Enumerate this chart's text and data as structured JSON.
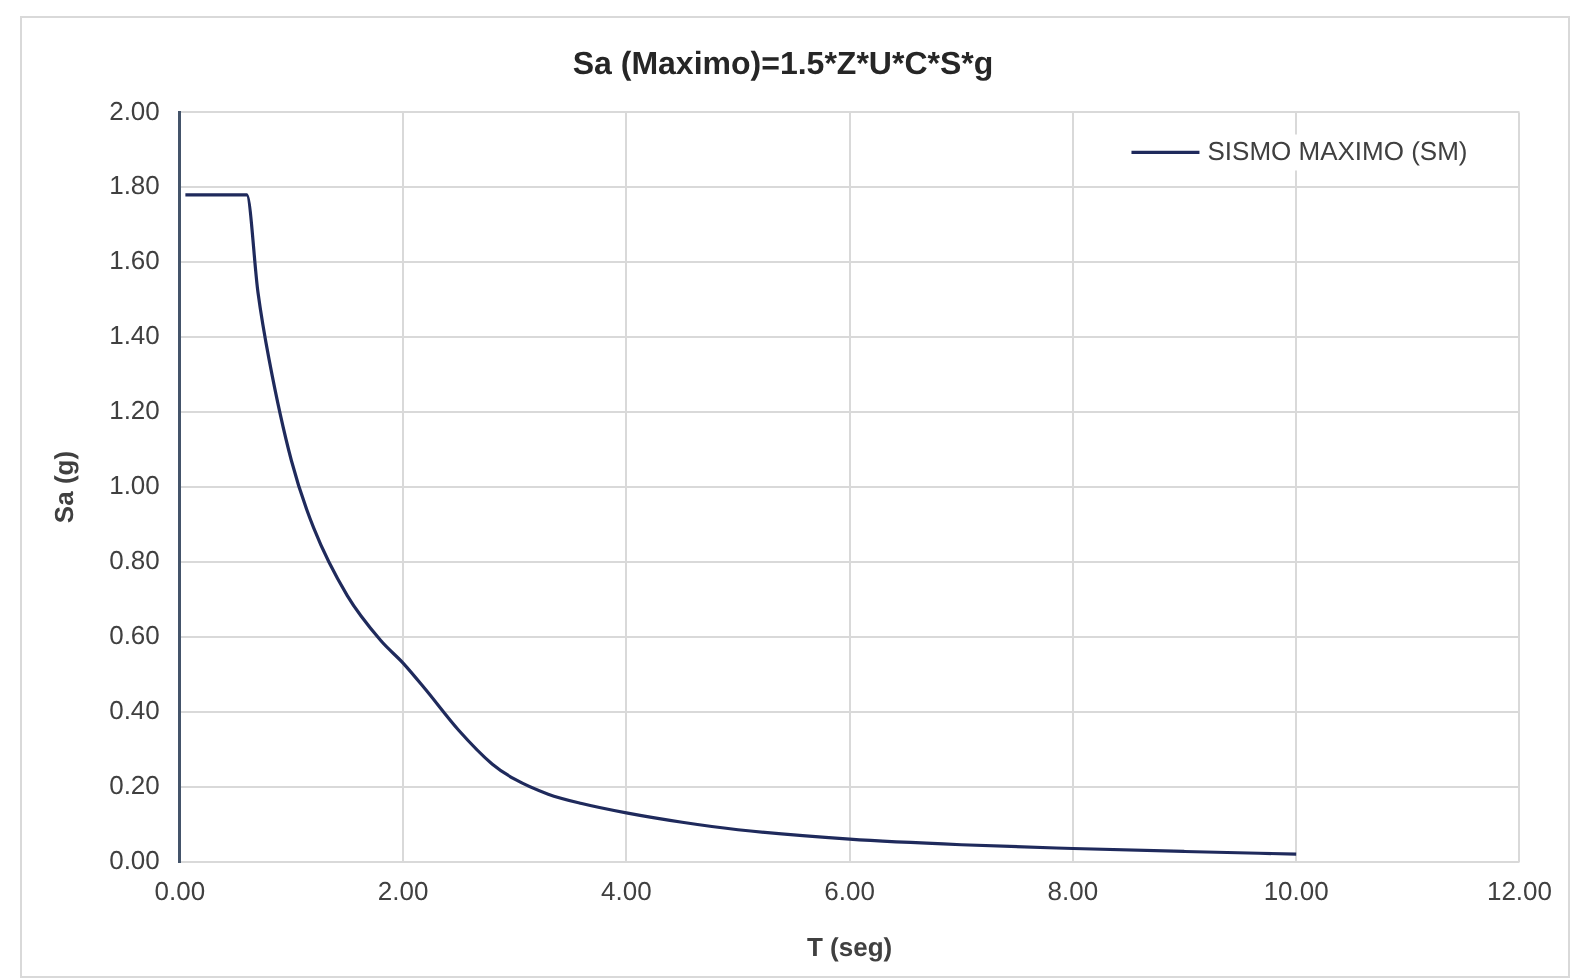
{
  "chart_data": {
    "type": "line",
    "title": "Sa (Maximo)=1.5*Z*U*C*S*g",
    "xlabel": "T (seg)",
    "ylabel": "Sa (g)",
    "x": [
      0.05,
      0.6,
      0.7,
      0.8,
      1.0,
      1.2,
      1.5,
      1.8,
      2.0,
      2.2,
      2.5,
      2.8,
      3.0,
      3.3,
      3.6,
      4.0,
      4.5,
      5.0,
      6.0,
      7.0,
      8.0,
      9.0,
      10.0
    ],
    "series": [
      {
        "name": "SISMO MAXIMO (SM)",
        "color": "#1f2a5c",
        "values": [
          1.78,
          1.78,
          1.52,
          1.34,
          1.07,
          0.89,
          0.71,
          0.59,
          0.53,
          0.46,
          0.35,
          0.26,
          0.22,
          0.18,
          0.155,
          0.13,
          0.105,
          0.085,
          0.06,
          0.045,
          0.035,
          0.027,
          0.02
        ]
      }
    ],
    "xlim": [
      0,
      12
    ],
    "xticks": [
      {
        "value": 0,
        "label": "0.00"
      },
      {
        "value": 2,
        "label": "2.00"
      },
      {
        "value": 4,
        "label": "4.00"
      },
      {
        "value": 6,
        "label": "6.00"
      },
      {
        "value": 8,
        "label": "8.00"
      },
      {
        "value": 10,
        "label": "10.00"
      },
      {
        "value": 12,
        "label": "12.00"
      }
    ],
    "ylim": [
      0,
      2
    ],
    "yticks": [
      {
        "value": 0,
        "label": "0.00"
      },
      {
        "value": 0.2,
        "label": "0.20"
      },
      {
        "value": 0.4,
        "label": "0.40"
      },
      {
        "value": 0.6,
        "label": "0.60"
      },
      {
        "value": 0.8,
        "label": "0.80"
      },
      {
        "value": 1.0,
        "label": "1.00"
      },
      {
        "value": 1.2,
        "label": "1.20"
      },
      {
        "value": 1.4,
        "label": "1.40"
      },
      {
        "value": 1.6,
        "label": "1.60"
      },
      {
        "value": 1.8,
        "label": "1.80"
      },
      {
        "value": 2.0,
        "label": "2.00"
      }
    ],
    "grid": true,
    "legend": "top right",
    "marker": "none",
    "line_style": "solid"
  }
}
